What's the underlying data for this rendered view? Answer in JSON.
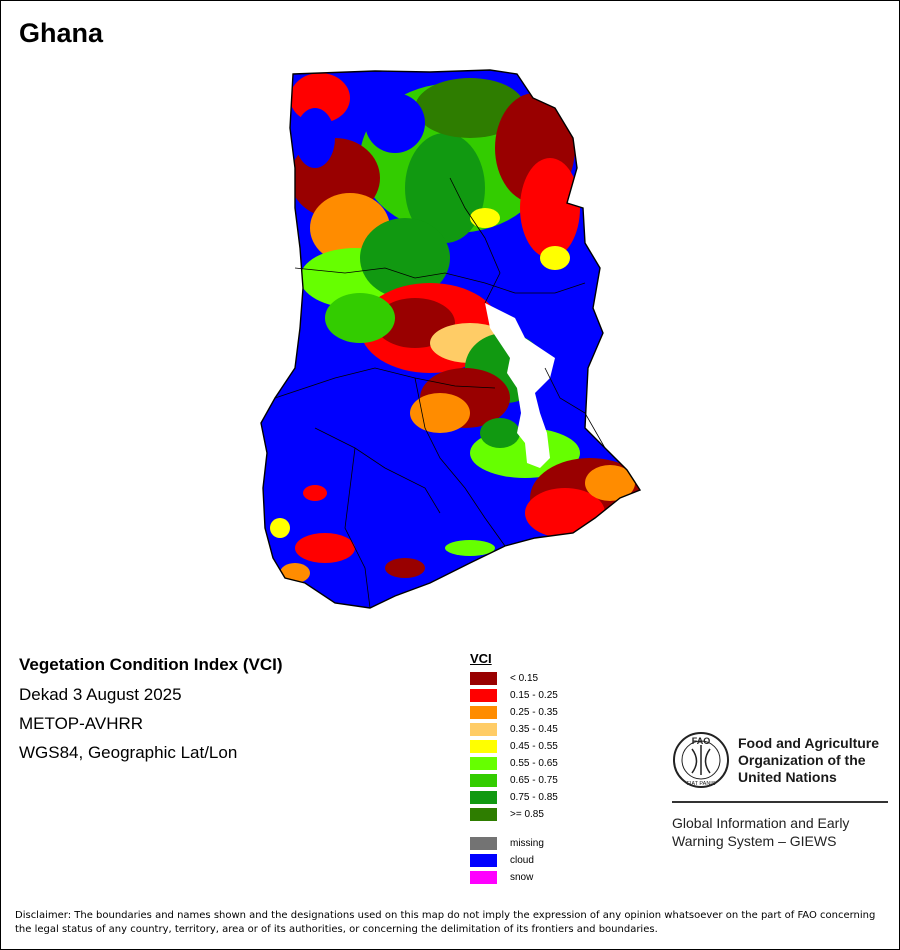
{
  "title": "Ghana",
  "product": {
    "name": "Vegetation Condition Index (VCI)",
    "period": "Dekad 3 August 2025",
    "sensor": "METOP-AVHRR",
    "projection": "WGS84, Geographic Lat/Lon"
  },
  "legend": {
    "title": "VCI",
    "classes": [
      {
        "label": "< 0.15",
        "color": "#990000"
      },
      {
        "label": "0.15 - 0.25",
        "color": "#ff0000"
      },
      {
        "label": "0.25 - 0.35",
        "color": "#ff8c00"
      },
      {
        "label": "0.35 - 0.45",
        "color": "#ffcc66"
      },
      {
        "label": "0.45 - 0.55",
        "color": "#ffff00"
      },
      {
        "label": "0.55 - 0.65",
        "color": "#66ff00"
      },
      {
        "label": "0.65 - 0.75",
        "color": "#33cc00"
      },
      {
        "label": "0.75 - 0.85",
        "color": "#119911"
      },
      {
        "label": ">= 0.85",
        "color": "#2e7d00"
      }
    ],
    "special": [
      {
        "label": "missing",
        "color": "#737373"
      },
      {
        "label": "cloud",
        "color": "#0000ff"
      },
      {
        "label": "snow",
        "color": "#ff00ff"
      }
    ]
  },
  "organization": {
    "logo_letters": "FAO",
    "logo_motto": "FIAT PANIS",
    "name_lines": [
      "Food and Agriculture",
      "Organization of the",
      "United Nations"
    ],
    "program_lines": [
      "Global Information and Early",
      "Warning System – GIEWS"
    ]
  },
  "disclaimer": "Disclaimer: The boundaries and names shown and the designations used on this map do not imply the expression of any opinion whatsoever on the part of FAO concerning the legal status of any country, territory, area or of its authorities, or concerning the delimitation of its frontiers and boundaries."
}
